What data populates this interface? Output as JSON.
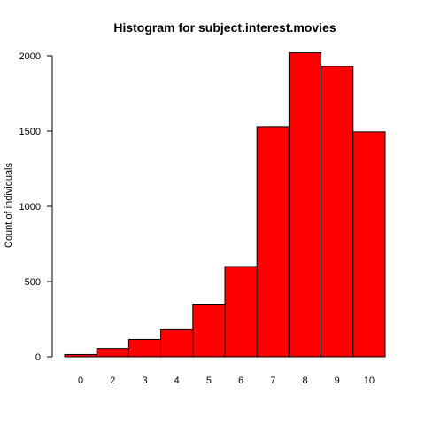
{
  "chart_data": {
    "type": "bar",
    "title": "Histogram for subject.interest.movies",
    "xlabel": "",
    "ylabel": "Count of individuals",
    "categories": [
      "0",
      "2",
      "3",
      "4",
      "5",
      "6",
      "7",
      "8",
      "9",
      "10"
    ],
    "values": [
      15,
      55,
      115,
      180,
      350,
      600,
      1530,
      2020,
      1930,
      1495
    ],
    "ylim": [
      0,
      2000
    ],
    "yticks": [
      "0",
      "500",
      "1000",
      "1500",
      "2000"
    ],
    "bar_color": "#ff0000",
    "bar_border_color": "#000000",
    "grid": false
  }
}
